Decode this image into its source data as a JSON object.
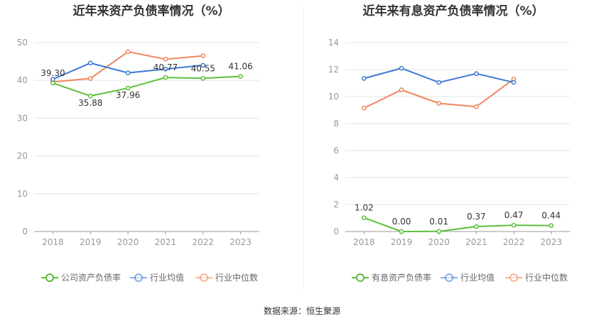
{
  "source_label": "数据来源：恒生聚源",
  "colors": {
    "company": "#5ac03a",
    "industry_avg": "#3f7ad6",
    "industry_median": "#f0865c"
  },
  "chart_data": [
    {
      "type": "line",
      "title": "近年来资产负债率情况（%）",
      "categories": [
        "2018",
        "2019",
        "2020",
        "2021",
        "2022",
        "2023"
      ],
      "ylim": [
        0,
        50
      ],
      "yticks": [
        0,
        10,
        20,
        30,
        40,
        50
      ],
      "grid": true,
      "legend_position": "bottom",
      "series": [
        {
          "key": "company",
          "name": "公司资产负债率",
          "values": [
            39.3,
            35.88,
            37.96,
            40.77,
            40.55,
            41.06
          ],
          "labels": [
            "39.30",
            "35.88",
            "37.96",
            "40.77",
            "40.55",
            "41.06"
          ],
          "label_pos": [
            "above",
            "below",
            "below",
            "above",
            "above",
            "above"
          ]
        },
        {
          "key": "industry_avg",
          "name": "行业均值",
          "values": [
            40.3,
            44.6,
            42.0,
            43.0,
            44.0,
            null
          ]
        },
        {
          "key": "industry_median",
          "name": "行业中位数",
          "values": [
            39.6,
            40.5,
            47.6,
            45.6,
            46.5,
            null
          ]
        }
      ]
    },
    {
      "type": "line",
      "title": "近年来有息资产负债率情况（%）",
      "categories": [
        "2018",
        "2019",
        "2020",
        "2021",
        "2022",
        "2023"
      ],
      "ylim": [
        0,
        14
      ],
      "yticks": [
        0,
        2,
        4,
        6,
        8,
        10,
        12,
        14
      ],
      "grid": true,
      "legend_position": "bottom",
      "series": [
        {
          "key": "company",
          "name": "有息资产负债率",
          "values": [
            1.02,
            0.0,
            0.01,
            0.37,
            0.47,
            0.44
          ],
          "labels": [
            "1.02",
            "0.00",
            "0.01",
            "0.37",
            "0.47",
            "0.44"
          ],
          "label_pos": [
            "above",
            "above",
            "above",
            "above",
            "above",
            "above"
          ]
        },
        {
          "key": "industry_avg",
          "name": "行业均值",
          "values": [
            11.35,
            12.1,
            11.05,
            11.7,
            11.05,
            null
          ]
        },
        {
          "key": "industry_median",
          "name": "行业中位数",
          "values": [
            9.15,
            10.5,
            9.5,
            9.25,
            11.3,
            null
          ]
        }
      ]
    }
  ]
}
